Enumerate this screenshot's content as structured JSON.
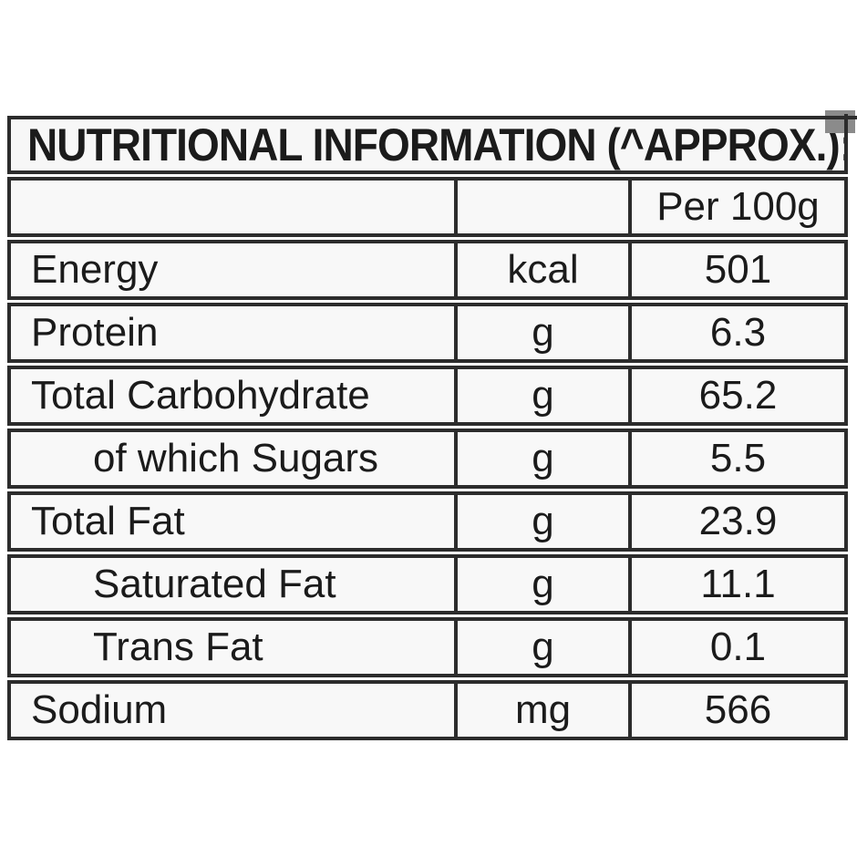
{
  "title": "NUTRITIONAL INFORMATION (^APPROX.):",
  "table": {
    "header": {
      "col1": "",
      "col2": "",
      "col3": "Per 100g"
    },
    "rows": [
      {
        "name": "Energy",
        "unit": "kcal",
        "per_100g": "501",
        "indent": false
      },
      {
        "name": "Protein",
        "unit": "g",
        "per_100g": "6.3",
        "indent": false
      },
      {
        "name": "Total Carbohydrate",
        "unit": "g",
        "per_100g": "65.2",
        "indent": false
      },
      {
        "name": "of which Sugars",
        "unit": "g",
        "per_100g": "5.5",
        "indent": true
      },
      {
        "name": "Total Fat",
        "unit": "g",
        "per_100g": "23.9",
        "indent": false
      },
      {
        "name": "Saturated Fat",
        "unit": "g",
        "per_100g": "11.1",
        "indent": true
      },
      {
        "name": "Trans Fat",
        "unit": "g",
        "per_100g": "0.1",
        "indent": true
      },
      {
        "name": "Sodium",
        "unit": "mg",
        "per_100g": "566",
        "indent": false
      }
    ]
  },
  "colors": {
    "border": "#2c2c2c",
    "cell_background": "#f8f8f8",
    "text": "#1b1b1b",
    "page_background": "#ffffff",
    "corner_square": "#8b8b8b"
  }
}
